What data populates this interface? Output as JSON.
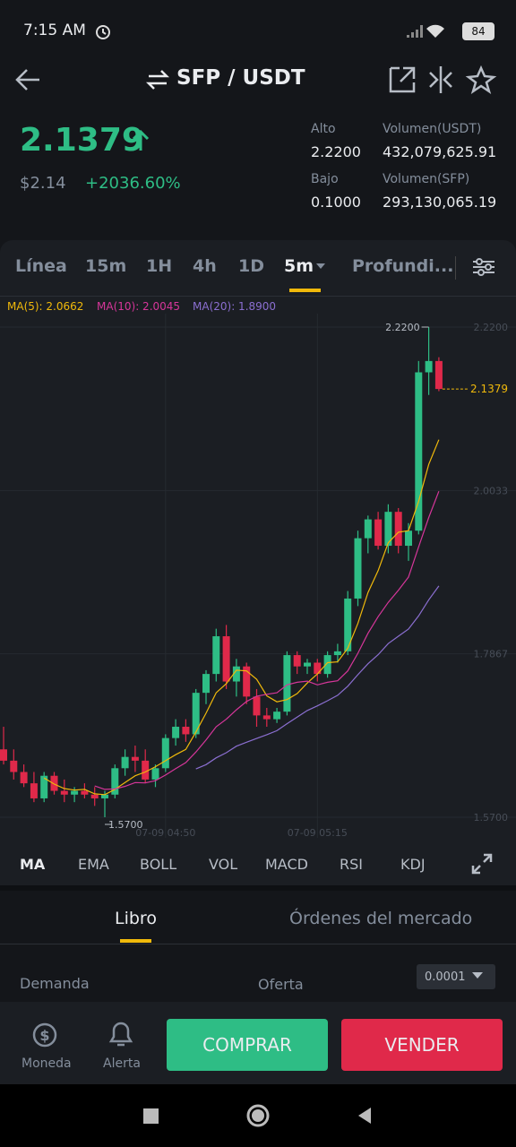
{
  "status_bar": {
    "time": "7:15 AM",
    "battery": "84"
  },
  "header": {
    "pair": "SFP / USDT"
  },
  "ticker": {
    "price": "2.1379",
    "fiat": "$2.14",
    "change": "+2036.60%",
    "stats": [
      {
        "label": "Alto",
        "value": "2.2200"
      },
      {
        "label": "Volumen(USDT)",
        "value": "432,079,625.91"
      },
      {
        "label": "Bajo",
        "value": "0.1000"
      },
      {
        "label": "Volumen(SFP)",
        "value": "293,130,065.19"
      }
    ]
  },
  "intervals": [
    "Línea",
    "15m",
    "1H",
    "4h",
    "1D",
    "5m",
    "Profundi..."
  ],
  "chart_data": {
    "type": "candlestick",
    "legend": [
      {
        "name": "MA(5): 2.0662",
        "color": "#f0b90b"
      },
      {
        "name": "MA(10): 2.0045",
        "color": "#d6369a"
      },
      {
        "name": "MA(20): 1.8900",
        "color": "#8b6fd1"
      }
    ],
    "categories": [
      null,
      null,
      null,
      null,
      null,
      null,
      null,
      null,
      null,
      null,
      null,
      null,
      null,
      null,
      null,
      null,
      "07-09 04:50",
      null,
      null,
      null,
      null,
      null,
      null,
      null,
      null,
      null,
      null,
      null,
      null,
      null,
      null,
      "07-09 05:15",
      null,
      null,
      null,
      null,
      null,
      null,
      null,
      null,
      null,
      null,
      null,
      null
    ],
    "open": [
      1.66,
      1.645,
      1.63,
      1.615,
      1.595,
      1.625,
      1.605,
      1.6,
      1.605,
      1.6,
      1.595,
      1.6,
      1.635,
      1.65,
      1.645,
      1.62,
      1.635,
      1.675,
      1.69,
      1.68,
      1.735,
      1.76,
      1.81,
      1.75,
      1.77,
      1.73,
      1.705,
      1.7,
      1.71,
      1.785,
      1.77,
      1.775,
      1.76,
      1.785,
      1.79,
      1.86,
      1.94,
      1.965,
      1.93,
      1.975,
      1.93,
      1.95,
      2.16,
      2.175
    ],
    "high": [
      1.69,
      1.66,
      1.64,
      1.63,
      1.63,
      1.63,
      1.62,
      1.61,
      1.615,
      1.61,
      1.605,
      1.64,
      1.66,
      1.665,
      1.66,
      1.64,
      1.68,
      1.7,
      1.7,
      1.74,
      1.765,
      1.82,
      1.825,
      1.78,
      1.775,
      1.74,
      1.715,
      1.715,
      1.79,
      1.79,
      1.78,
      1.78,
      1.79,
      1.8,
      1.87,
      1.95,
      1.97,
      1.975,
      1.985,
      1.98,
      1.96,
      2.175,
      2.22,
      2.18
    ],
    "low": [
      1.64,
      1.62,
      1.61,
      1.59,
      1.59,
      1.6,
      1.59,
      1.59,
      1.595,
      1.585,
      1.57,
      1.595,
      1.625,
      1.63,
      1.615,
      1.61,
      1.63,
      1.665,
      1.67,
      1.675,
      1.72,
      1.75,
      1.74,
      1.73,
      1.72,
      1.69,
      1.69,
      1.695,
      1.705,
      1.76,
      1.76,
      1.75,
      1.755,
      1.775,
      1.785,
      1.85,
      1.92,
      1.925,
      1.92,
      1.92,
      1.91,
      1.945,
      2.13,
      2.135
    ],
    "close": [
      1.645,
      1.63,
      1.615,
      1.595,
      1.625,
      1.605,
      1.6,
      1.605,
      1.6,
      1.595,
      1.6,
      1.635,
      1.65,
      1.645,
      1.62,
      1.635,
      1.675,
      1.69,
      1.68,
      1.735,
      1.76,
      1.81,
      1.75,
      1.77,
      1.73,
      1.705,
      1.7,
      1.71,
      1.785,
      1.77,
      1.775,
      1.76,
      1.785,
      1.79,
      1.86,
      1.94,
      1.965,
      1.93,
      1.975,
      1.93,
      1.95,
      2.16,
      2.175,
      2.1379
    ],
    "up_color": "#2ebd85",
    "down_color": "#e0294a",
    "ylim": [
      1.57,
      2.22
    ],
    "yticks": [
      {
        "value": 2.22,
        "label": "2.2200"
      },
      {
        "value": 2.0033,
        "label": "2.0033"
      },
      {
        "value": 1.7867,
        "label": "1.7867"
      },
      {
        "value": 1.57,
        "label": "1.5700"
      }
    ],
    "max_label": {
      "value": 2.22,
      "label": "2.2200"
    },
    "min_label": {
      "value": 1.57,
      "label": "1.5700"
    },
    "last_price": {
      "value": 2.1379,
      "label": "2.1379"
    },
    "grid": true
  },
  "indicators": [
    "MA",
    "EMA",
    "BOLL",
    "VOL",
    "MACD",
    "RSI",
    "KDJ"
  ],
  "book_tabs": [
    "Libro",
    "Órdenes del mercado"
  ],
  "book": {
    "bid": "Demanda",
    "ask": "Oferta",
    "step": "0.0001"
  },
  "bottom_bar": {
    "coin": "Moneda",
    "alert": "Alerta",
    "buy": "COMPRAR",
    "sell": "VENDER"
  }
}
